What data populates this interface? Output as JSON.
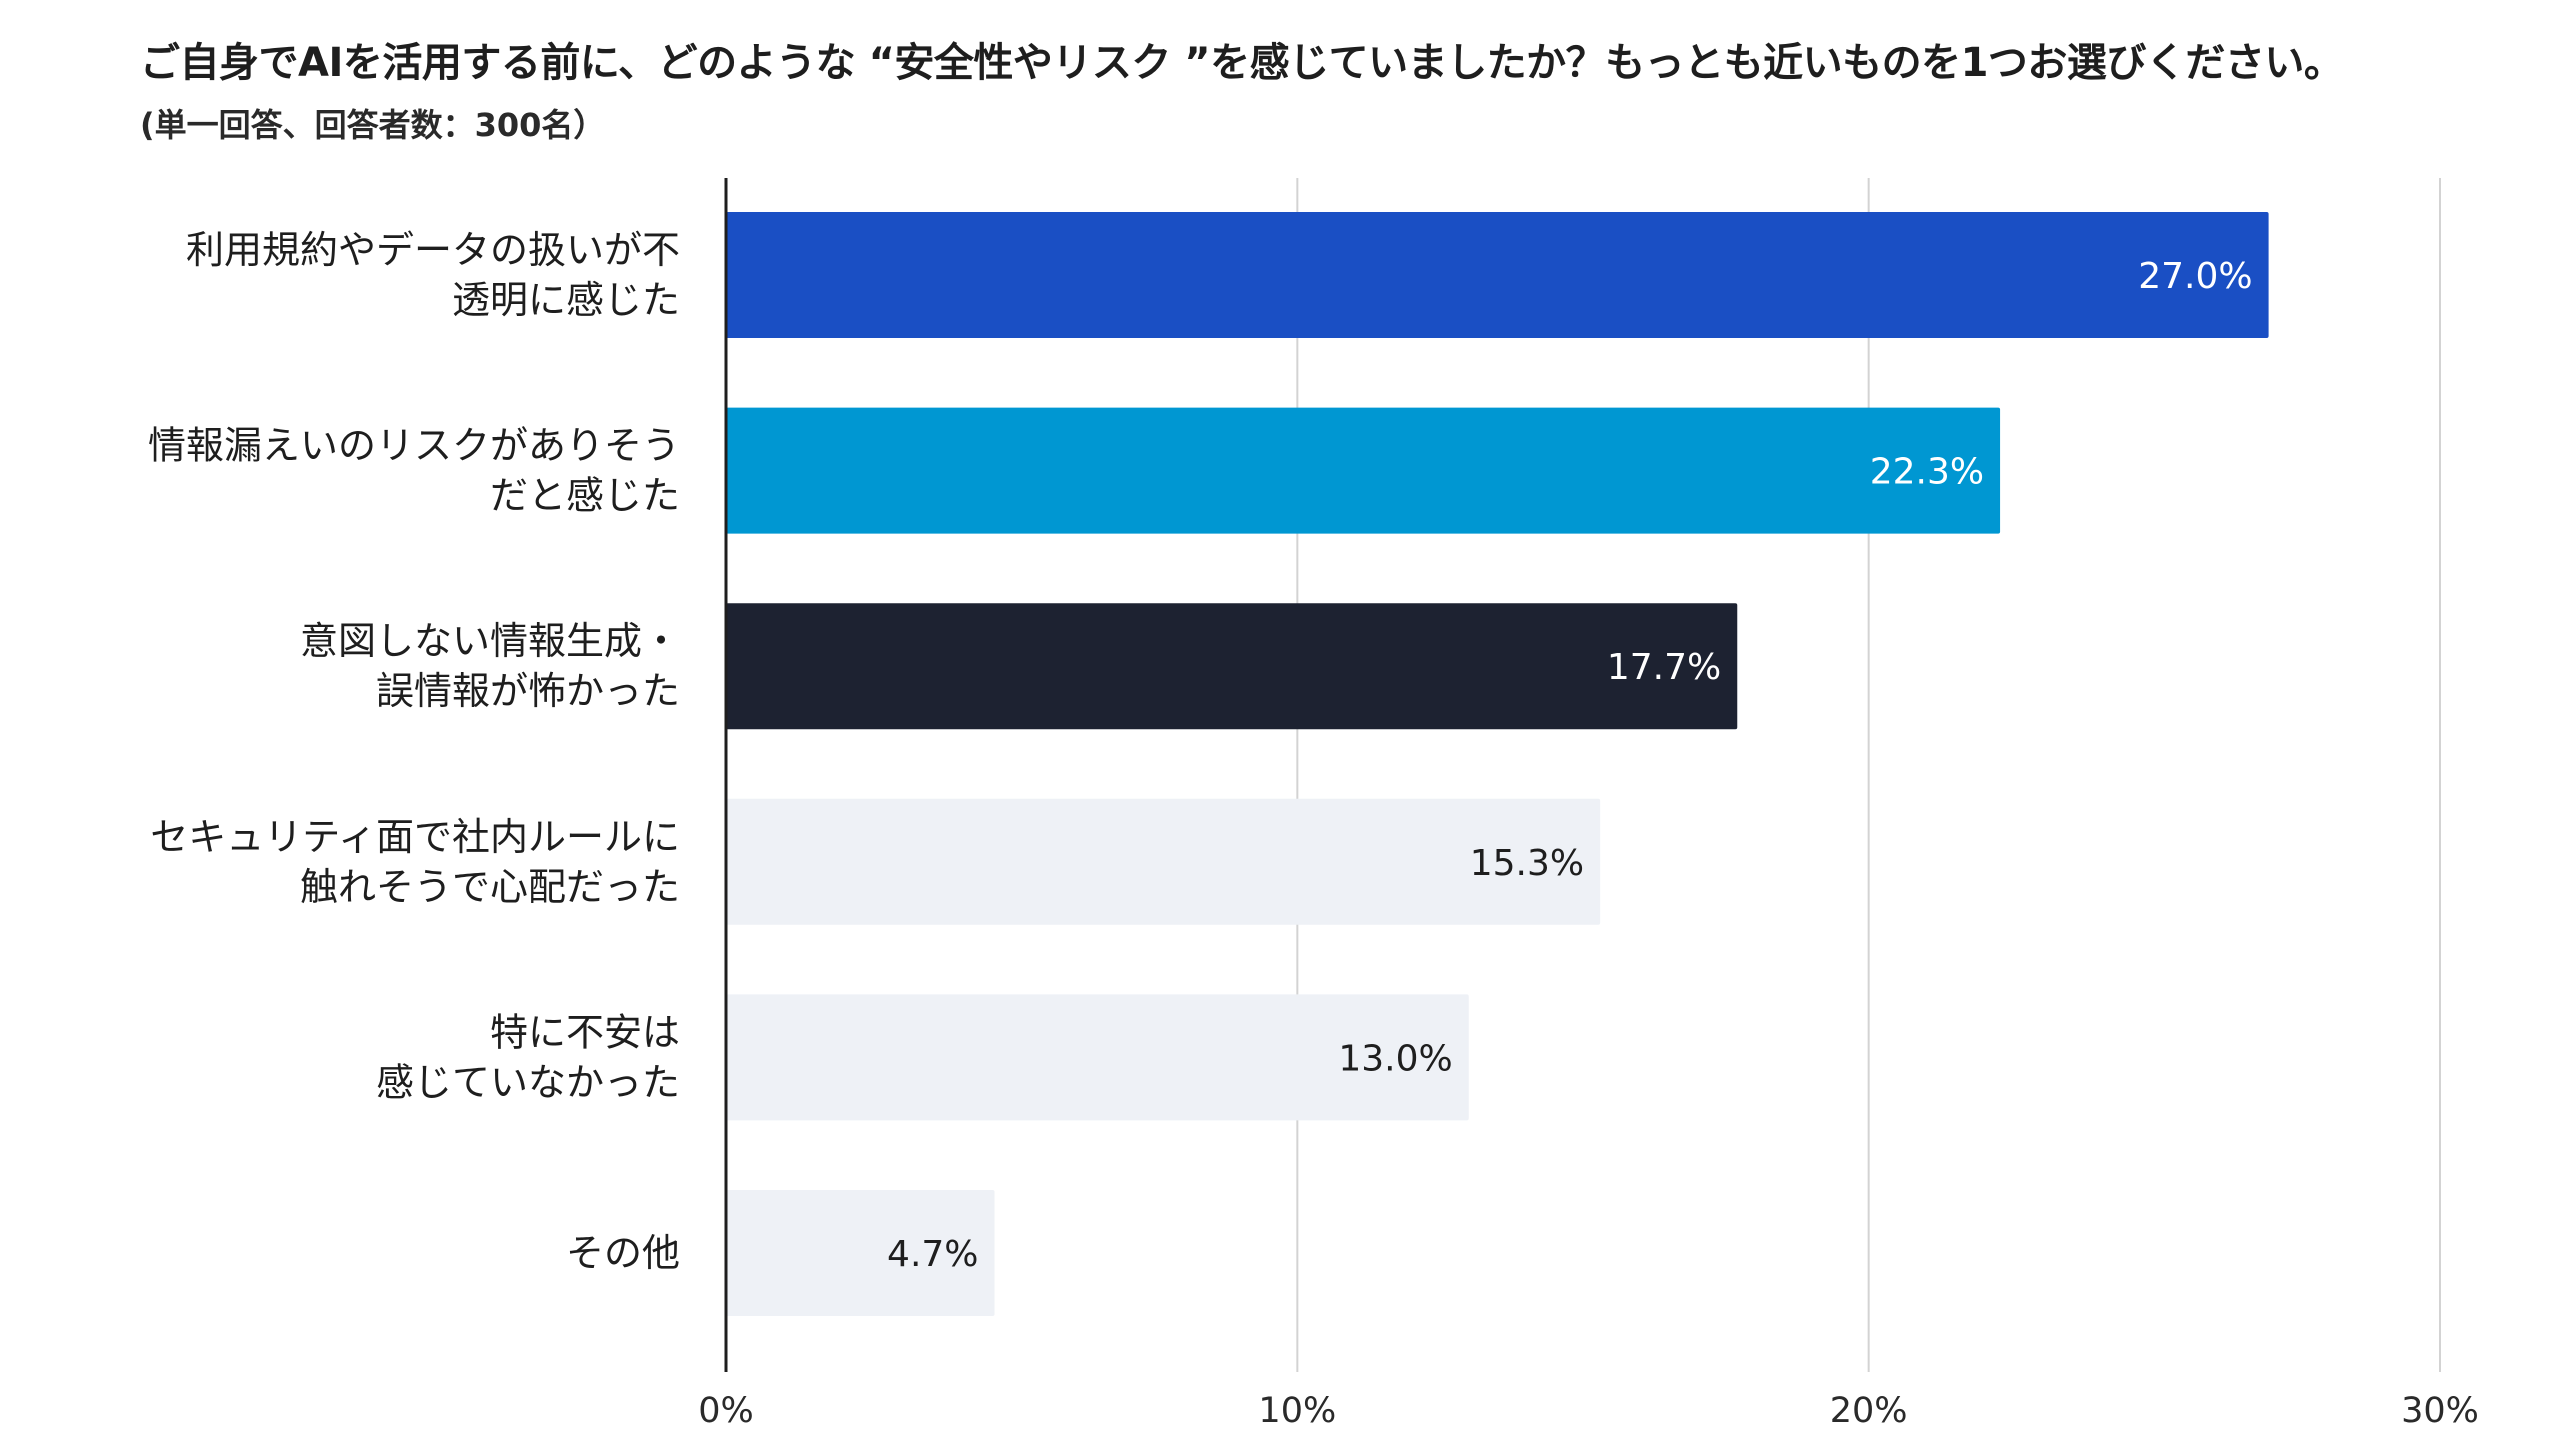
{
  "chart_data": {
    "type": "bar",
    "orientation": "horizontal",
    "title": "ご自身でAIを活用する前に、どのような “安全性やリスク ”を感じていましたか？もっとも近いものを1つお選びください。",
    "subtitle": "(単一回答、回答者数：300名）",
    "categories": [
      [
        "利用規約やデータの扱いが不",
        "透明に感じた"
      ],
      [
        "情報漏えいのリスクがありそう",
        "だと感じた"
      ],
      [
        "意図しない情報生成・",
        "誤情報が怖かった"
      ],
      [
        "セキュリティ面で社内ルールに",
        "触れそうで心配だった"
      ],
      [
        "特に不安は",
        "感じていなかった"
      ],
      [
        "その他"
      ]
    ],
    "values": [
      27.0,
      22.3,
      17.7,
      15.3,
      13.0,
      4.7
    ],
    "value_labels": [
      "27.0%",
      "22.3%",
      "17.7%",
      "15.3%",
      "13.0%",
      "4.7%"
    ],
    "unit": "%",
    "xlim": [
      0,
      30
    ],
    "ticks": [
      0,
      10,
      20,
      30
    ],
    "tick_labels": [
      "0%",
      "10%",
      "20%",
      "30%"
    ],
    "gridlines": true,
    "bar_colors": [
      "#1a4fc4",
      "#0097d2",
      "#1d2231",
      "#eef1f6",
      "#eef1f6",
      "#eef1f6"
    ],
    "label_colors": [
      "#ffffff",
      "#ffffff",
      "#ffffff",
      "#1e1e1e",
      "#1e1e1e",
      "#1e1e1e"
    ]
  }
}
